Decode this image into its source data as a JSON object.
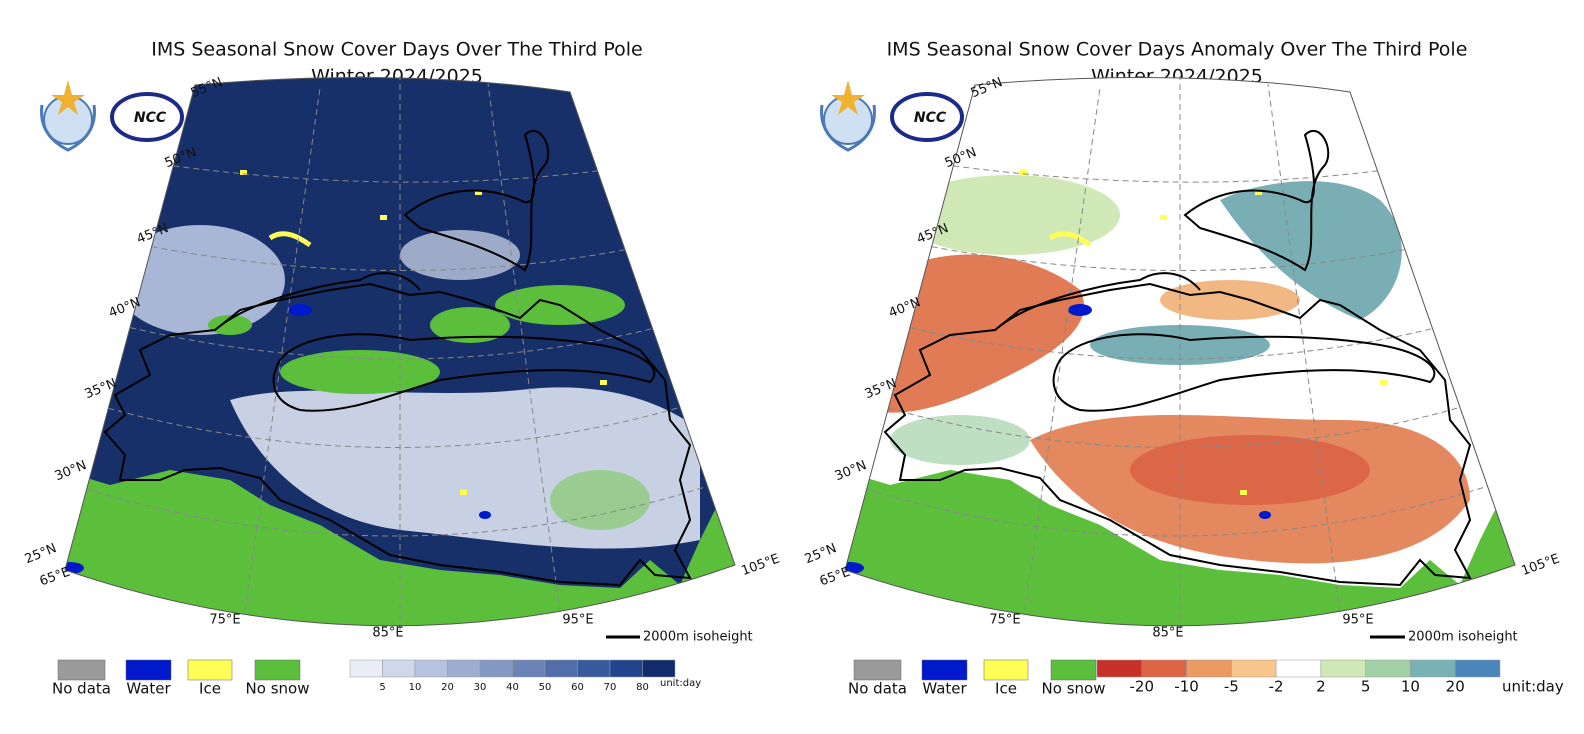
{
  "panels": [
    {
      "title": "IMS Seasonal Snow Cover Days Over The Third Pole",
      "subtitle": "Winter 2024/2025",
      "logo_text": "NCC",
      "lat_labels": [
        "55°N",
        "50°N",
        "45°N",
        "40°N",
        "35°N",
        "30°N",
        "25°N"
      ],
      "lon_labels": [
        "65°E",
        "75°E",
        "85°E",
        "95°E",
        "105°E"
      ],
      "legend": [
        {
          "label": "No data",
          "color": "#9a9a9a"
        },
        {
          "label": "Water",
          "color": "#0019cc"
        },
        {
          "label": "Ice",
          "color": "#ffff55"
        },
        {
          "label": "No snow",
          "color": "#5bbf3b"
        }
      ],
      "colorbar": {
        "colors": [
          "#e8edf6",
          "#cfd8ea",
          "#b6c2de",
          "#9dadd1",
          "#8498c4",
          "#6b83b7",
          "#526eaa",
          "#39599d",
          "#22448f",
          "#102c6c"
        ],
        "ticks": [
          5,
          10,
          20,
          30,
          40,
          50,
          60,
          70,
          80
        ],
        "unit": "unit:day"
      },
      "isoheight": "2000m isoheight"
    },
    {
      "title": "IMS Seasonal Snow Cover Days Anomaly Over The Third Pole",
      "subtitle": "Winter 2024/2025",
      "logo_text": "NCC",
      "lat_labels": [
        "55°N",
        "50°N",
        "45°N",
        "40°N",
        "35°N",
        "30°N",
        "25°N"
      ],
      "lon_labels": [
        "65°E",
        "75°E",
        "85°E",
        "95°E",
        "105°E"
      ],
      "legend": [
        {
          "label": "No data",
          "color": "#9a9a9a"
        },
        {
          "label": "Water",
          "color": "#0019cc"
        },
        {
          "label": "Ice",
          "color": "#ffff55"
        },
        {
          "label": "No snow",
          "color": "#5bbf3b"
        }
      ],
      "colorbar": {
        "colors": [
          "#c8312a",
          "#de6445",
          "#eb9b62",
          "#f6c68b",
          "#ffffff",
          "#cfe8b6",
          "#a2d1a7",
          "#78b2b4",
          "#4a86bb"
        ],
        "ticks": [
          -20,
          -10,
          -5,
          -2,
          2,
          5,
          10,
          20
        ],
        "unit": "unit:day"
      },
      "isoheight": "2000m isoheight"
    }
  ]
}
